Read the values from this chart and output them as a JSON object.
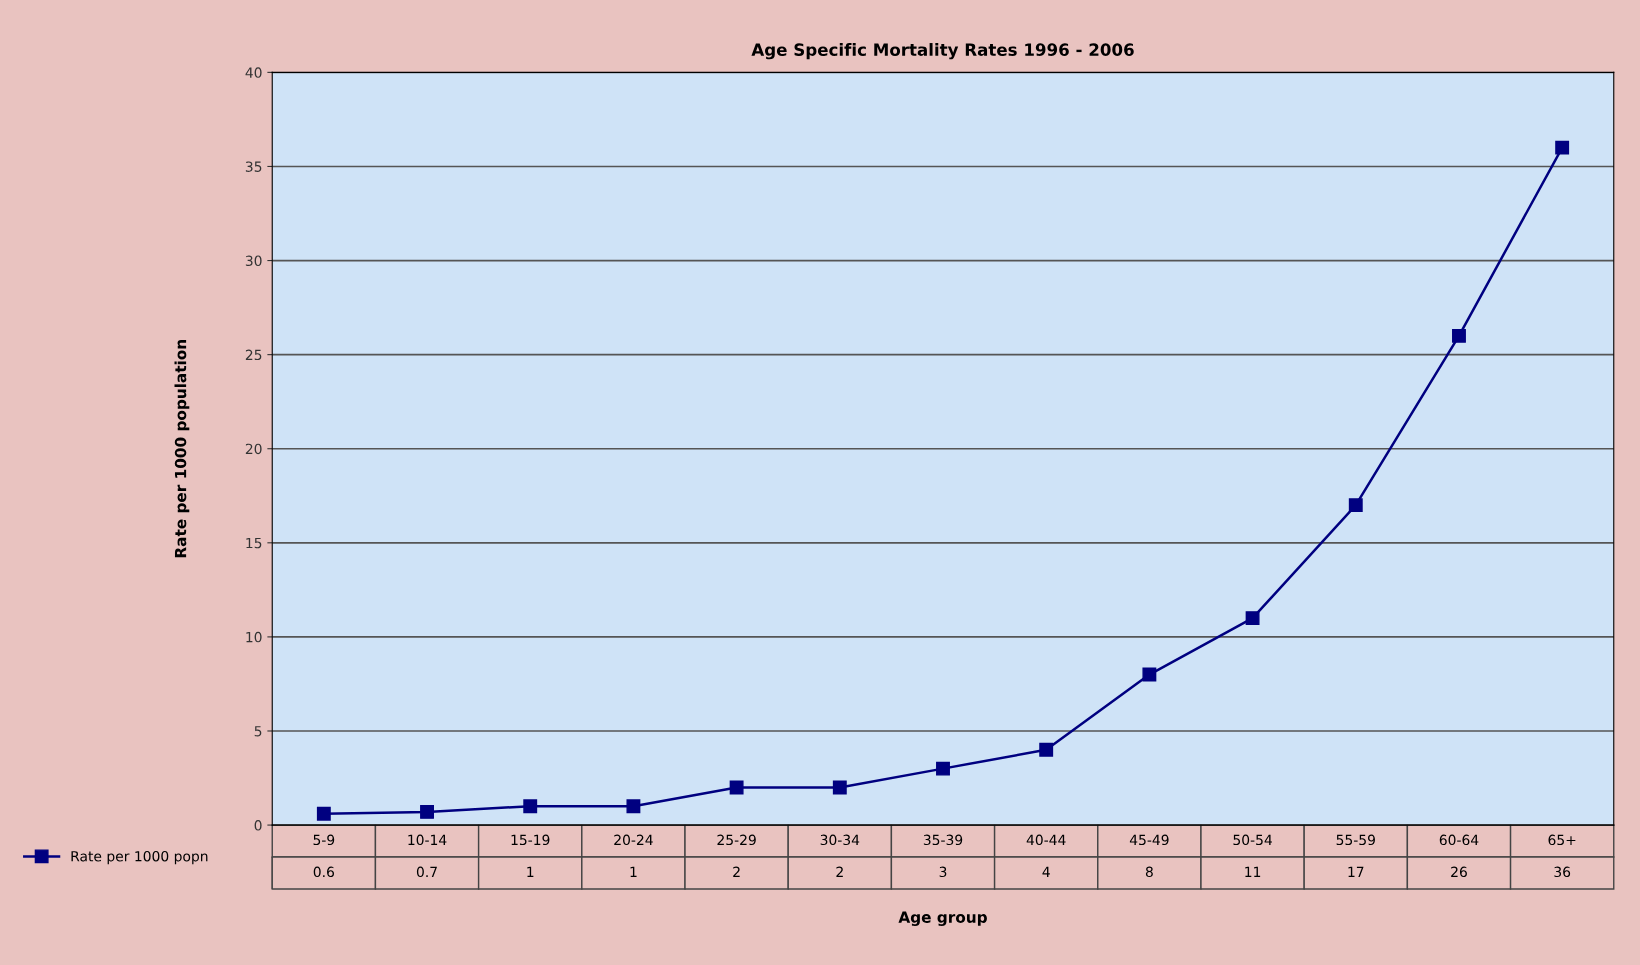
{
  "chart_data": {
    "type": "line",
    "title": "Age Specific Mortality Rates 1996 - 2006",
    "xlabel": "Age group",
    "ylabel": "Rate per 1000 population",
    "categories": [
      "5-9",
      "10-14",
      "15-19",
      "20-24",
      "25-29",
      "30-34",
      "35-39",
      "40-44",
      "45-49",
      "50-54",
      "55-59",
      "60-64",
      "65+"
    ],
    "series": [
      {
        "name": "Rate per 1000 popn",
        "color": "#000080",
        "values": [
          0.6,
          0.7,
          1,
          1,
          2,
          2,
          3,
          4,
          8,
          11,
          17,
          26,
          36
        ]
      }
    ],
    "ylim": [
      0,
      40
    ],
    "yticks": [
      0,
      5,
      10,
      15,
      20,
      25,
      30,
      35,
      40
    ],
    "grid": "y",
    "marker": "square",
    "line_style": "solid",
    "data_labels": true,
    "legend": "bottom left"
  }
}
